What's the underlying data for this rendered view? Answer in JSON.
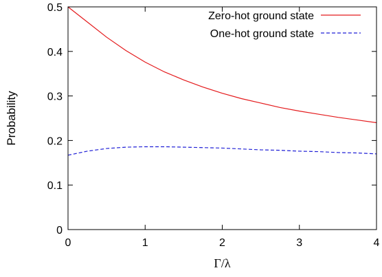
{
  "chart_data": {
    "type": "line",
    "title": "",
    "xlabel": "Γ/λ",
    "ylabel": "Probability",
    "xlim": [
      0,
      4
    ],
    "ylim": [
      0,
      0.5
    ],
    "xticks": [
      0,
      1,
      2,
      3,
      4
    ],
    "xtick_labels": [
      "0",
      "1",
      "2",
      "3",
      "4"
    ],
    "yticks": [
      0,
      0.1,
      0.2,
      0.3,
      0.4,
      0.5
    ],
    "ytick_labels": [
      "0",
      "0.1",
      "0.2",
      "0.3",
      "0.4",
      "0.5"
    ],
    "grid": false,
    "legend_position": "top-right",
    "x": [
      0,
      0.25,
      0.5,
      0.75,
      1,
      1.25,
      1.5,
      1.75,
      2,
      2.25,
      2.5,
      2.75,
      3,
      3.25,
      3.5,
      3.75,
      4
    ],
    "series": [
      {
        "name": "Zero-hot ground state",
        "color": "#e41a1c",
        "style": "solid",
        "values": [
          0.5,
          0.466,
          0.432,
          0.402,
          0.376,
          0.354,
          0.336,
          0.32,
          0.306,
          0.294,
          0.284,
          0.274,
          0.266,
          0.259,
          0.252,
          0.246,
          0.24
        ]
      },
      {
        "name": "One-hot ground state",
        "color": "#1f1fd6",
        "style": "dashed",
        "values": [
          0.167,
          0.176,
          0.182,
          0.185,
          0.186,
          0.186,
          0.185,
          0.184,
          0.183,
          0.181,
          0.179,
          0.178,
          0.176,
          0.175,
          0.173,
          0.172,
          0.17
        ]
      }
    ]
  }
}
